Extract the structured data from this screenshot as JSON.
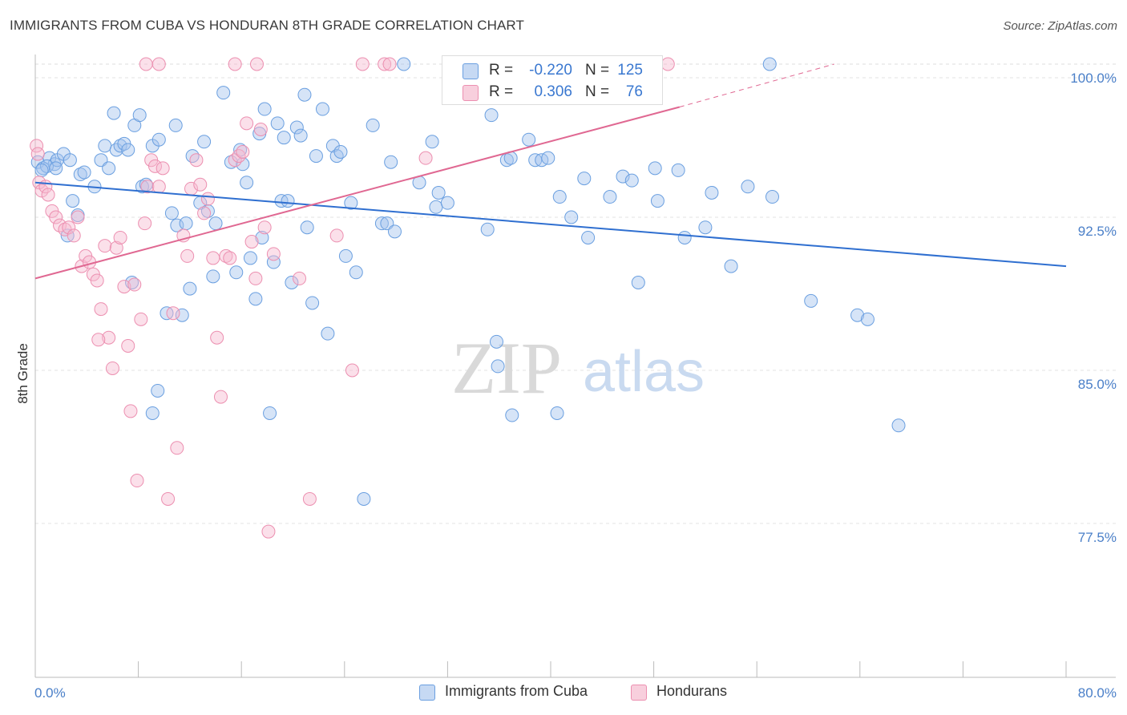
{
  "header": {
    "title": "IMMIGRANTS FROM CUBA VS HONDURAN 8TH GRADE CORRELATION CHART",
    "source": "Source: ZipAtlas.com"
  },
  "legend": {
    "rows": [
      {
        "r_label": "R =",
        "r_value": "-0.220",
        "n_label": "N =",
        "n_value": "125",
        "color": "#6a9fe0"
      },
      {
        "r_label": "R =",
        "r_value": "0.306",
        "n_label": "N =",
        "n_value": "76",
        "color": "#ec8fb0"
      }
    ]
  },
  "watermark": {
    "zip": "ZIP",
    "atlas": "atlas"
  },
  "chart_data": {
    "type": "scatter",
    "title": "IMMIGRANTS FROM CUBA VS HONDURAN 8TH GRADE CORRELATION CHART",
    "xlabel": "",
    "ylabel": "8th Grade",
    "xlim": [
      0,
      80
    ],
    "ylim": [
      70,
      100.5
    ],
    "x_tick_labels": [
      "0.0%",
      "80.0%"
    ],
    "y_ticks": [
      100,
      92.5,
      85,
      77.5
    ],
    "y_tick_labels": [
      "100.0%",
      "92.5%",
      "85.0%",
      "77.5%"
    ],
    "grid": true,
    "legend_position": "bottom",
    "colors": {
      "cuba": "#6a9fe0",
      "hondurans": "#ec8fb0",
      "cuba_line": "#2f6fd0",
      "hondurans_line": "#e06892"
    },
    "series": [
      {
        "name": "Immigrants from Cuba",
        "color": "#6a9fe0",
        "trend": {
          "x": [
            0,
            80
          ],
          "y": [
            94.2,
            90.1
          ]
        },
        "points": [
          [
            0.2,
            95.2
          ],
          [
            0.6,
            94.9
          ],
          [
            1.1,
            95.4
          ],
          [
            1.5,
            95.1
          ],
          [
            1.7,
            95.3
          ],
          [
            2.2,
            95.6
          ],
          [
            2.7,
            95.3
          ],
          [
            0.9,
            95.0
          ],
          [
            1.6,
            94.9
          ],
          [
            0.5,
            94.8
          ],
          [
            2.9,
            93.3
          ],
          [
            3.5,
            94.6
          ],
          [
            3.8,
            94.7
          ],
          [
            4.6,
            94.0
          ],
          [
            5.1,
            95.3
          ],
          [
            5.4,
            96.0
          ],
          [
            5.7,
            94.9
          ],
          [
            6.1,
            97.6
          ],
          [
            6.3,
            95.8
          ],
          [
            6.6,
            96.0
          ],
          [
            6.9,
            96.1
          ],
          [
            7.2,
            95.8
          ],
          [
            7.5,
            89.3
          ],
          [
            7.7,
            97.0
          ],
          [
            8.1,
            97.5
          ],
          [
            8.3,
            94.0
          ],
          [
            8.6,
            94.1
          ],
          [
            9.1,
            96.0
          ],
          [
            9.6,
            96.3
          ],
          [
            10.2,
            87.8
          ],
          [
            10.6,
            92.7
          ],
          [
            10.9,
            97.0
          ],
          [
            11.0,
            92.1
          ],
          [
            11.4,
            87.7
          ],
          [
            11.7,
            92.2
          ],
          [
            12.0,
            89.0
          ],
          [
            12.2,
            95.5
          ],
          [
            12.8,
            93.2
          ],
          [
            13.1,
            96.2
          ],
          [
            13.4,
            92.8
          ],
          [
            13.8,
            89.6
          ],
          [
            14.0,
            92.2
          ],
          [
            14.6,
            98.6
          ],
          [
            15.2,
            95.2
          ],
          [
            15.6,
            89.8
          ],
          [
            15.9,
            95.8
          ],
          [
            16.1,
            95.1
          ],
          [
            16.4,
            94.2
          ],
          [
            16.7,
            90.5
          ],
          [
            17.1,
            88.5
          ],
          [
            17.4,
            96.6
          ],
          [
            17.6,
            91.5
          ],
          [
            17.8,
            97.8
          ],
          [
            18.5,
            90.3
          ],
          [
            18.8,
            97.1
          ],
          [
            19.1,
            93.3
          ],
          [
            19.3,
            96.4
          ],
          [
            19.6,
            93.3
          ],
          [
            19.9,
            89.3
          ],
          [
            20.3,
            96.9
          ],
          [
            20.6,
            96.5
          ],
          [
            20.9,
            98.5
          ],
          [
            21.1,
            92.0
          ],
          [
            21.5,
            88.3
          ],
          [
            21.8,
            95.5
          ],
          [
            22.3,
            97.8
          ],
          [
            22.7,
            86.8
          ],
          [
            23.1,
            96.0
          ],
          [
            23.4,
            95.5
          ],
          [
            23.7,
            95.7
          ],
          [
            24.1,
            90.6
          ],
          [
            24.5,
            93.2
          ],
          [
            24.9,
            89.8
          ],
          [
            25.5,
            78.7
          ],
          [
            26.2,
            97.0
          ],
          [
            26.9,
            92.2
          ],
          [
            27.3,
            92.2
          ],
          [
            27.6,
            95.2
          ],
          [
            27.9,
            91.8
          ],
          [
            28.6,
            100.0
          ],
          [
            29.8,
            94.2
          ],
          [
            30.8,
            96.2
          ],
          [
            31.1,
            93.0
          ],
          [
            31.3,
            93.7
          ],
          [
            32.0,
            93.2
          ],
          [
            34.2,
            100.0
          ],
          [
            35.1,
            91.9
          ],
          [
            35.4,
            97.5
          ],
          [
            35.8,
            86.4
          ],
          [
            35.9,
            85.2
          ],
          [
            36.6,
            95.3
          ],
          [
            36.9,
            95.4
          ],
          [
            37.0,
            82.8
          ],
          [
            38.3,
            96.3
          ],
          [
            38.8,
            95.3
          ],
          [
            39.3,
            95.3
          ],
          [
            39.8,
            95.4
          ],
          [
            40.5,
            82.9
          ],
          [
            40.7,
            93.5
          ],
          [
            41.6,
            92.5
          ],
          [
            42.6,
            94.4
          ],
          [
            42.9,
            91.5
          ],
          [
            44.6,
            93.5
          ],
          [
            45.6,
            94.5
          ],
          [
            46.3,
            94.3
          ],
          [
            46.8,
            89.3
          ],
          [
            48.1,
            94.9
          ],
          [
            48.3,
            93.3
          ],
          [
            49.9,
            94.8
          ],
          [
            50.4,
            91.5
          ],
          [
            52.0,
            92.0
          ],
          [
            52.5,
            93.7
          ],
          [
            54.0,
            90.1
          ],
          [
            55.3,
            94.0
          ],
          [
            57.0,
            100.0
          ],
          [
            57.2,
            93.5
          ],
          [
            60.2,
            88.4
          ],
          [
            63.8,
            87.7
          ],
          [
            64.6,
            87.5
          ],
          [
            67.0,
            82.3
          ],
          [
            9.5,
            84.0
          ],
          [
            9.1,
            82.9
          ],
          [
            18.2,
            82.9
          ],
          [
            3.3,
            92.6
          ],
          [
            2.5,
            91.6
          ]
        ]
      },
      {
        "name": "Hondurans",
        "color": "#ec8fb0",
        "trend": {
          "x": [
            0,
            50,
            62
          ],
          "y": [
            89.5,
            97.9,
            100.0
          ],
          "solid_until": 50
        },
        "points": [
          [
            0.1,
            96.0
          ],
          [
            0.2,
            95.6
          ],
          [
            0.3,
            94.2
          ],
          [
            0.5,
            93.8
          ],
          [
            0.8,
            94.0
          ],
          [
            1.0,
            93.6
          ],
          [
            1.3,
            92.8
          ],
          [
            1.6,
            92.5
          ],
          [
            1.9,
            92.1
          ],
          [
            2.3,
            91.9
          ],
          [
            2.6,
            92.0
          ],
          [
            3.0,
            91.6
          ],
          [
            3.3,
            92.5
          ],
          [
            3.6,
            90.1
          ],
          [
            3.9,
            90.6
          ],
          [
            4.2,
            90.3
          ],
          [
            4.5,
            89.7
          ],
          [
            4.8,
            89.4
          ],
          [
            5.1,
            88.0
          ],
          [
            5.4,
            91.1
          ],
          [
            5.7,
            86.6
          ],
          [
            6.0,
            85.1
          ],
          [
            6.3,
            91.0
          ],
          [
            6.6,
            91.5
          ],
          [
            6.9,
            89.1
          ],
          [
            7.2,
            86.2
          ],
          [
            7.4,
            83.0
          ],
          [
            7.7,
            89.2
          ],
          [
            7.9,
            79.6
          ],
          [
            8.2,
            87.5
          ],
          [
            8.5,
            92.2
          ],
          [
            8.7,
            94.0
          ],
          [
            9.0,
            95.3
          ],
          [
            9.3,
            95.0
          ],
          [
            9.6,
            94.0
          ],
          [
            9.9,
            94.9
          ],
          [
            10.3,
            78.7
          ],
          [
            10.7,
            87.8
          ],
          [
            11.0,
            81.2
          ],
          [
            11.5,
            91.6
          ],
          [
            11.8,
            90.6
          ],
          [
            12.1,
            93.9
          ],
          [
            12.5,
            95.3
          ],
          [
            12.8,
            94.1
          ],
          [
            13.1,
            92.7
          ],
          [
            13.4,
            93.4
          ],
          [
            13.8,
            90.5
          ],
          [
            14.1,
            86.6
          ],
          [
            14.4,
            83.7
          ],
          [
            14.8,
            90.6
          ],
          [
            15.1,
            90.5
          ],
          [
            15.5,
            95.3
          ],
          [
            15.8,
            95.5
          ],
          [
            16.1,
            95.7
          ],
          [
            16.4,
            97.1
          ],
          [
            16.8,
            91.3
          ],
          [
            17.1,
            89.5
          ],
          [
            17.5,
            96.8
          ],
          [
            17.8,
            92.0
          ],
          [
            18.1,
            77.1
          ],
          [
            18.5,
            90.7
          ],
          [
            8.6,
            100.0
          ],
          [
            9.6,
            100.0
          ],
          [
            15.5,
            100.0
          ],
          [
            17.2,
            100.0
          ],
          [
            20.5,
            89.5
          ],
          [
            21.3,
            78.7
          ],
          [
            23.4,
            91.6
          ],
          [
            24.6,
            85.0
          ],
          [
            25.4,
            100.0
          ],
          [
            27.1,
            100.0
          ],
          [
            27.5,
            100.0
          ],
          [
            30.3,
            95.4
          ],
          [
            42.5,
            100.0
          ],
          [
            49.1,
            100.0
          ],
          [
            4.9,
            86.5
          ]
        ]
      }
    ]
  },
  "bottom_legend": {
    "items": [
      {
        "label": "Immigrants from Cuba",
        "color": "#6a9fe0"
      },
      {
        "label": "Hondurans",
        "color": "#ec8fb0"
      }
    ]
  }
}
